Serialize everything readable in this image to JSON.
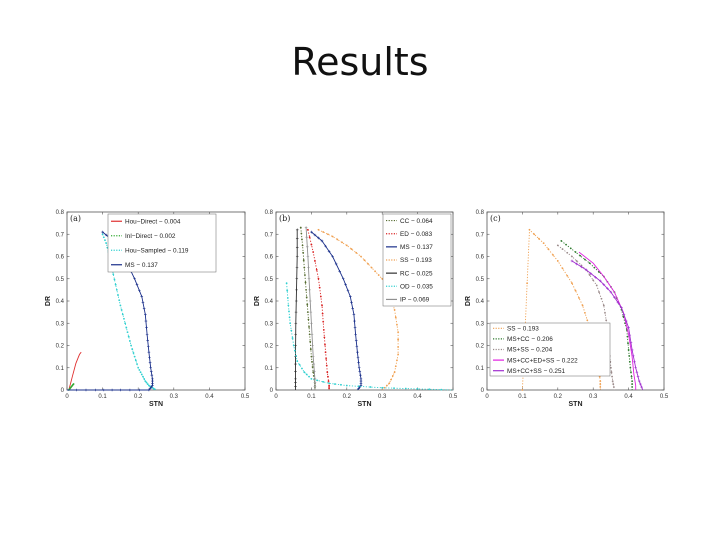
{
  "slide": {
    "title": "Results"
  },
  "chart_data": [
    {
      "type": "line",
      "panel_label": "(a)",
      "xlabel": "STN",
      "ylabel": "DR",
      "xlim": [
        0,
        0.5
      ],
      "ylim": [
        0,
        0.8
      ],
      "xticks": [
        "0",
        "0.1",
        "0.2",
        "0.3",
        "0.4",
        "0.5"
      ],
      "yticks": [
        "0",
        "0.1",
        "0.2",
        "0.3",
        "0.4",
        "0.5",
        "0.6",
        "0.7",
        "0.8"
      ],
      "legend_position": "top-right",
      "series": [
        {
          "name": "Hou−Direct − 0.004",
          "color": "#e03030",
          "marker": "line",
          "points": [
            [
              0.005,
              0.0
            ],
            [
              0.01,
              0.03
            ],
            [
              0.015,
              0.06
            ],
            [
              0.02,
              0.09
            ],
            [
              0.025,
              0.12
            ],
            [
              0.03,
              0.14
            ],
            [
              0.035,
              0.16
            ],
            [
              0.04,
              0.17
            ]
          ]
        },
        {
          "name": "Inl−Direct − 0.002",
          "color": "#33aa33",
          "marker": "dot",
          "points": [
            [
              0.005,
              0.0
            ],
            [
              0.01,
              0.01
            ],
            [
              0.015,
              0.02
            ],
            [
              0.02,
              0.03
            ]
          ]
        },
        {
          "name": "Hou−Sampled − 0.119",
          "color": "#30d0d0",
          "marker": "dot",
          "points": [
            [
              0.1,
              0.7
            ],
            [
              0.11,
              0.66
            ],
            [
              0.12,
              0.6
            ],
            [
              0.13,
              0.52
            ],
            [
              0.14,
              0.45
            ],
            [
              0.15,
              0.38
            ],
            [
              0.16,
              0.32
            ],
            [
              0.17,
              0.26
            ],
            [
              0.18,
              0.2
            ],
            [
              0.19,
              0.15
            ],
            [
              0.2,
              0.1
            ],
            [
              0.21,
              0.07
            ],
            [
              0.22,
              0.04
            ],
            [
              0.23,
              0.02
            ],
            [
              0.24,
              0.01
            ],
            [
              0.25,
              0.0
            ]
          ]
        },
        {
          "name": "MS − 0.137",
          "color": "#1a2f8a",
          "marker": "plus",
          "points": [
            [
              0.1,
              0.71
            ],
            [
              0.13,
              0.67
            ],
            [
              0.16,
              0.6
            ],
            [
              0.19,
              0.5
            ],
            [
              0.21,
              0.42
            ],
            [
              0.22,
              0.34
            ],
            [
              0.225,
              0.25
            ],
            [
              0.23,
              0.17
            ],
            [
              0.235,
              0.1
            ],
            [
              0.24,
              0.05
            ],
            [
              0.24,
              0.02
            ],
            [
              0.23,
              0.0
            ],
            [
              0.15,
              0.0
            ],
            [
              0.08,
              0.0
            ],
            [
              0.0,
              0.0
            ]
          ]
        }
      ]
    },
    {
      "type": "line",
      "panel_label": "(b)",
      "xlabel": "STN",
      "ylabel": "DR",
      "xlim": [
        0,
        0.5
      ],
      "ylim": [
        0,
        0.8
      ],
      "xticks": [
        "0",
        "0.1",
        "0.2",
        "0.3",
        "0.4",
        "0.5"
      ],
      "yticks": [
        "0",
        "0.1",
        "0.2",
        "0.3",
        "0.4",
        "0.5",
        "0.6",
        "0.7",
        "0.8"
      ],
      "legend_position": "top-right",
      "series": [
        {
          "name": "CC − 0.064",
          "color": "#556b2f",
          "marker": "dot",
          "points": [
            [
              0.07,
              0.73
            ],
            [
              0.075,
              0.65
            ],
            [
              0.08,
              0.55
            ],
            [
              0.085,
              0.45
            ],
            [
              0.09,
              0.35
            ],
            [
              0.095,
              0.25
            ],
            [
              0.1,
              0.15
            ],
            [
              0.105,
              0.08
            ],
            [
              0.11,
              0.03
            ],
            [
              0.11,
              0.0
            ]
          ]
        },
        {
          "name": "ED − 0.083",
          "color": "#d92020",
          "marker": "dot",
          "points": [
            [
              0.09,
              0.72
            ],
            [
              0.105,
              0.62
            ],
            [
              0.12,
              0.5
            ],
            [
              0.13,
              0.38
            ],
            [
              0.135,
              0.27
            ],
            [
              0.14,
              0.17
            ],
            [
              0.145,
              0.08
            ],
            [
              0.15,
              0.02
            ],
            [
              0.15,
              0.0
            ]
          ]
        },
        {
          "name": "MS − 0.137",
          "color": "#1a2f8a",
          "marker": "plus",
          "points": [
            [
              0.1,
              0.71
            ],
            [
              0.13,
              0.67
            ],
            [
              0.16,
              0.6
            ],
            [
              0.19,
              0.5
            ],
            [
              0.21,
              0.42
            ],
            [
              0.22,
              0.34
            ],
            [
              0.225,
              0.25
            ],
            [
              0.23,
              0.17
            ],
            [
              0.235,
              0.1
            ],
            [
              0.24,
              0.05
            ],
            [
              0.24,
              0.02
            ],
            [
              0.23,
              0.0
            ]
          ]
        },
        {
          "name": "SS − 0.193",
          "color": "#f0a050",
          "marker": "dot",
          "points": [
            [
              0.12,
              0.72
            ],
            [
              0.16,
              0.69
            ],
            [
              0.2,
              0.65
            ],
            [
              0.24,
              0.6
            ],
            [
              0.27,
              0.55
            ],
            [
              0.3,
              0.5
            ],
            [
              0.32,
              0.44
            ],
            [
              0.335,
              0.36
            ],
            [
              0.345,
              0.26
            ],
            [
              0.345,
              0.16
            ],
            [
              0.335,
              0.08
            ],
            [
              0.32,
              0.03
            ],
            [
              0.3,
              0.0
            ]
          ]
        },
        {
          "name": "RC − 0.025",
          "color": "#303030",
          "marker": "plus",
          "points": [
            [
              0.06,
              0.72
            ],
            [
              0.06,
              0.6
            ],
            [
              0.058,
              0.45
            ],
            [
              0.056,
              0.3
            ],
            [
              0.055,
              0.15
            ],
            [
              0.055,
              0.05
            ],
            [
              0.055,
              0.0
            ]
          ]
        },
        {
          "name": "OD − 0.035",
          "color": "#30d0d0",
          "marker": "dot",
          "points": [
            [
              0.03,
              0.48
            ],
            [
              0.035,
              0.38
            ],
            [
              0.04,
              0.3
            ],
            [
              0.05,
              0.2
            ],
            [
              0.06,
              0.13
            ],
            [
              0.08,
              0.08
            ],
            [
              0.1,
              0.05
            ],
            [
              0.15,
              0.03
            ],
            [
              0.2,
              0.02
            ],
            [
              0.3,
              0.01
            ],
            [
              0.4,
              0.005
            ],
            [
              0.5,
              0.0
            ]
          ]
        },
        {
          "name": "IP − 0.069",
          "color": "#909090",
          "marker": "plus",
          "points": [
            [
              0.085,
              0.73
            ],
            [
              0.09,
              0.6
            ],
            [
              0.095,
              0.45
            ],
            [
              0.1,
              0.3
            ],
            [
              0.105,
              0.15
            ],
            [
              0.11,
              0.05
            ],
            [
              0.11,
              0.0
            ]
          ]
        }
      ]
    },
    {
      "type": "line",
      "panel_label": "(c)",
      "xlabel": "STN",
      "ylabel": "DR",
      "xlim": [
        0,
        0.5
      ],
      "ylim": [
        0,
        0.8
      ],
      "xticks": [
        "0",
        "0.1",
        "0.2",
        "0.3",
        "0.4",
        "0.5"
      ],
      "yticks": [
        "0",
        "0.1",
        "0.2",
        "0.3",
        "0.4",
        "0.5",
        "0.6",
        "0.7",
        "0.8"
      ],
      "legend_position": "bottom-left",
      "series": [
        {
          "name": "SS − 0.193",
          "color": "#f0a050",
          "marker": "dot",
          "points": [
            [
              0.1,
              0.0
            ],
            [
              0.12,
              0.72
            ],
            [
              0.16,
              0.66
            ],
            [
              0.2,
              0.58
            ],
            [
              0.24,
              0.48
            ],
            [
              0.27,
              0.38
            ],
            [
              0.29,
              0.28
            ],
            [
              0.305,
              0.18
            ],
            [
              0.315,
              0.1
            ],
            [
              0.32,
              0.04
            ],
            [
              0.32,
              0.0
            ]
          ]
        },
        {
          "name": "MS+CC − 0.206",
          "color": "#2e7a2e",
          "marker": "dot",
          "points": [
            [
              0.21,
              0.67
            ],
            [
              0.25,
              0.62
            ],
            [
              0.29,
              0.57
            ],
            [
              0.33,
              0.51
            ],
            [
              0.36,
              0.44
            ],
            [
              0.38,
              0.36
            ],
            [
              0.395,
              0.27
            ],
            [
              0.4,
              0.18
            ],
            [
              0.405,
              0.1
            ],
            [
              0.41,
              0.04
            ],
            [
              0.41,
              0.0
            ]
          ]
        },
        {
          "name": "MS+SS − 0.204",
          "color": "#9a8a8a",
          "marker": "dot",
          "points": [
            [
              0.2,
              0.65
            ],
            [
              0.24,
              0.6
            ],
            [
              0.28,
              0.54
            ],
            [
              0.31,
              0.47
            ],
            [
              0.33,
              0.38
            ],
            [
              0.34,
              0.28
            ],
            [
              0.345,
              0.18
            ],
            [
              0.35,
              0.1
            ],
            [
              0.355,
              0.04
            ],
            [
              0.36,
              0.0
            ]
          ]
        },
        {
          "name": "MS+CC+ED+SS − 0.222",
          "color": "#e020e0",
          "marker": "line",
          "points": [
            [
              0.26,
              0.62
            ],
            [
              0.3,
              0.57
            ],
            [
              0.33,
              0.51
            ],
            [
              0.36,
              0.44
            ],
            [
              0.385,
              0.35
            ],
            [
              0.4,
              0.25
            ],
            [
              0.41,
              0.15
            ],
            [
              0.415,
              0.07
            ],
            [
              0.42,
              0.02
            ],
            [
              0.42,
              0.0
            ]
          ]
        },
        {
          "name": "MS+CC+SS − 0.251",
          "color": "#a030d0",
          "marker": "plus",
          "points": [
            [
              0.24,
              0.58
            ],
            [
              0.28,
              0.54
            ],
            [
              0.32,
              0.49
            ],
            [
              0.35,
              0.44
            ],
            [
              0.38,
              0.37
            ],
            [
              0.4,
              0.28
            ],
            [
              0.41,
              0.18
            ],
            [
              0.42,
              0.1
            ],
            [
              0.43,
              0.04
            ],
            [
              0.44,
              0.0
            ]
          ]
        }
      ]
    }
  ]
}
